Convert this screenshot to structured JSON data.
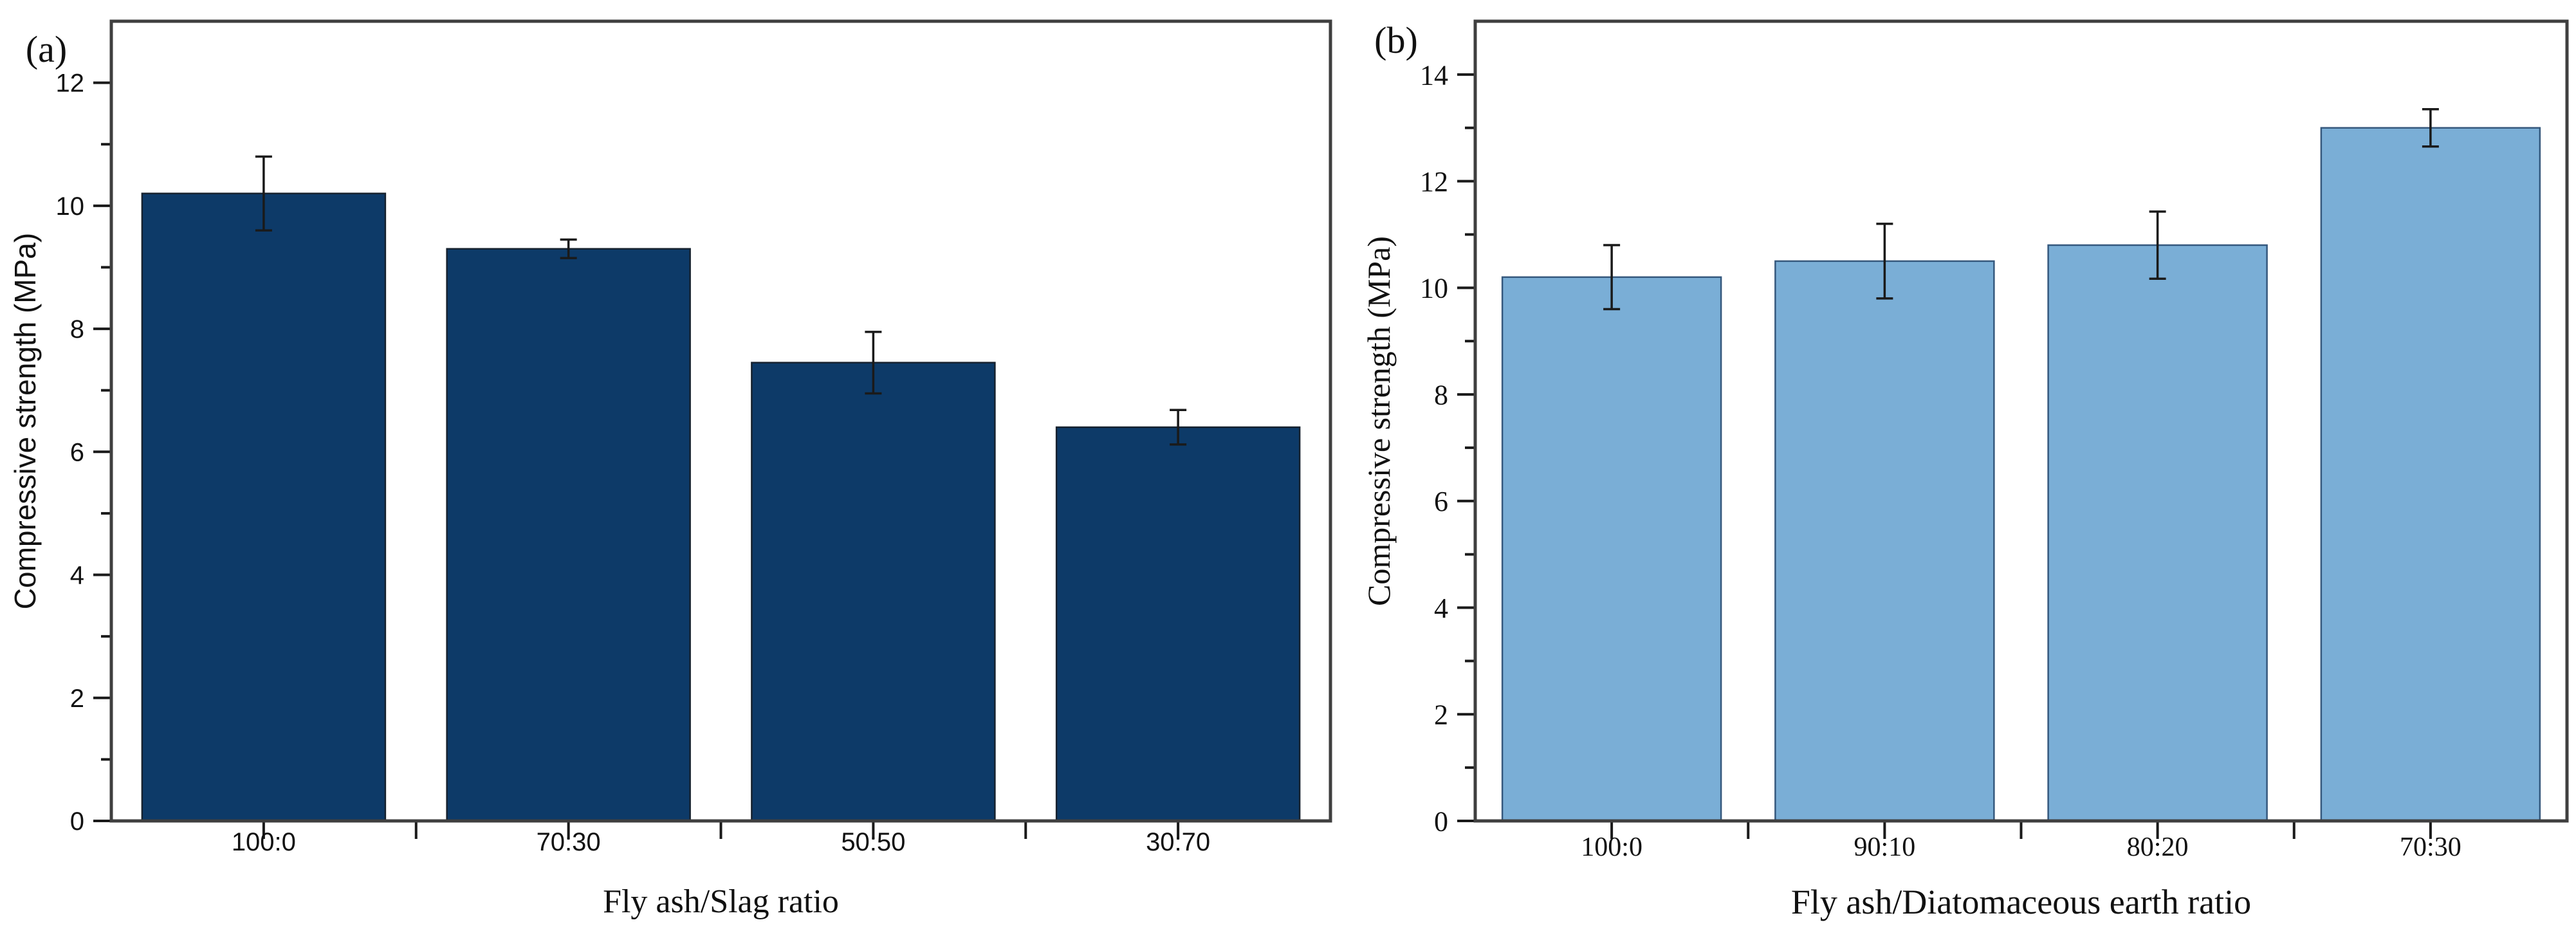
{
  "figure": {
    "background": "#ffffff",
    "frame_color": "#3f3f3f",
    "tick_color": "#1a1a1a",
    "error_bar_color": "#1a1a1a",
    "panel_tags": [
      "(a)",
      "(b)"
    ]
  },
  "chart_data": [
    {
      "type": "bar",
      "panel_tag": "(a)",
      "title": "",
      "xlabel": "Fly ash/Slag ratio",
      "ylabel": "Compressive strength (MPa)",
      "categories": [
        "100:0",
        "70:30",
        "50:50",
        "30:70"
      ],
      "values": [
        10.2,
        9.3,
        7.45,
        6.4
      ],
      "errors": [
        0.6,
        0.15,
        0.5,
        0.28
      ],
      "ylim": [
        0,
        13
      ],
      "ytick_major_step": 2,
      "ytick_minor_step": 1,
      "ytick_labels": [
        "0",
        "2",
        "4",
        "6",
        "8",
        "10",
        "12"
      ],
      "grid": false,
      "legend": null,
      "bar_fill": "#0d3a68",
      "bar_edge": "#16222f"
    },
    {
      "type": "bar",
      "panel_tag": "(b)",
      "title": "",
      "xlabel": "Fly ash/Diatomaceous earth ratio",
      "ylabel": "Compressive strength (MPa)",
      "categories": [
        "100:0",
        "90:10",
        "80:20",
        "70:30"
      ],
      "values": [
        10.2,
        10.5,
        10.8,
        13.0
      ],
      "errors": [
        0.6,
        0.7,
        0.63,
        0.35
      ],
      "ylim": [
        0,
        15
      ],
      "ytick_major_step": 2,
      "ytick_minor_step": 1,
      "ytick_labels": [
        "0",
        "2",
        "4",
        "6",
        "8",
        "10",
        "12",
        "14"
      ],
      "grid": false,
      "legend": null,
      "bar_fill": "#7aaed6",
      "bar_edge": "#35587d"
    }
  ]
}
